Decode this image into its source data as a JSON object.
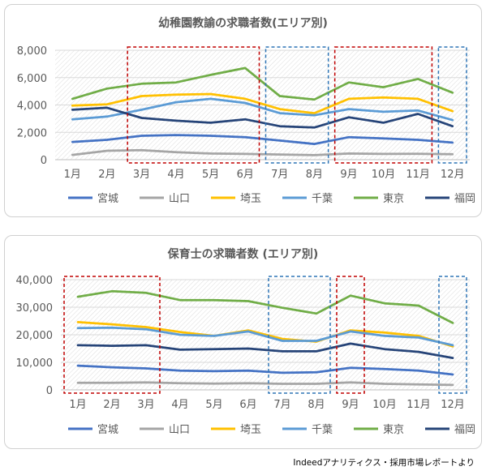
{
  "source_note": "Indeedアナリティクス・採用市場レポートより",
  "chart_data": [
    {
      "type": "line",
      "title": "幼稚園教諭の求職者数(エリア別)",
      "categories": [
        "1月",
        "2月",
        "3月",
        "4月",
        "5月",
        "6月",
        "7月",
        "8月",
        "9月",
        "10月",
        "11月",
        "12月"
      ],
      "ylim": [
        0,
        8000
      ],
      "yticks": [
        "0",
        "2,000",
        "4,000",
        "6,000",
        "8,000"
      ],
      "ytick_values": [
        0,
        2000,
        4000,
        6000,
        8000
      ],
      "legend_position": "bottom",
      "grid": true,
      "series": [
        {
          "name": "宮城",
          "color": "#4472c4",
          "values": [
            1300,
            1450,
            1750,
            1800,
            1750,
            1650,
            1400,
            1150,
            1650,
            1550,
            1450,
            1250
          ]
        },
        {
          "name": "山口",
          "color": "#a5a5a5",
          "values": [
            350,
            650,
            700,
            550,
            450,
            420,
            380,
            330,
            450,
            420,
            430,
            400
          ]
        },
        {
          "name": "埼玉",
          "color": "#ffc000",
          "values": [
            3950,
            4050,
            4650,
            4750,
            4800,
            4450,
            3700,
            3400,
            4450,
            4550,
            4450,
            3550
          ]
        },
        {
          "name": "千葉",
          "color": "#5b9bd5",
          "values": [
            2950,
            3150,
            3650,
            4200,
            4450,
            4150,
            3400,
            3250,
            3700,
            3500,
            3600,
            2900
          ]
        },
        {
          "name": "東京",
          "color": "#70ad47",
          "values": [
            4450,
            5200,
            5550,
            5650,
            6200,
            6700,
            4650,
            4400,
            5650,
            5300,
            5900,
            4900
          ]
        },
        {
          "name": "福岡",
          "color": "#264478",
          "values": [
            3650,
            3800,
            3050,
            2850,
            2700,
            2950,
            2450,
            2350,
            3100,
            2700,
            3350,
            2450
          ]
        }
      ],
      "highlights": [
        {
          "color": "#c00000",
          "from": "3月",
          "to": "6月"
        },
        {
          "color": "#2e75b6",
          "from": "7月",
          "to": "8月"
        },
        {
          "color": "#c00000",
          "from": "9月",
          "to": "11月"
        },
        {
          "color": "#2e75b6",
          "from": "12月",
          "to": "12月"
        }
      ]
    },
    {
      "type": "line",
      "title": "保育士の求職者数 (エリア別)",
      "categories": [
        "1月",
        "2月",
        "3月",
        "4月",
        "5月",
        "6月",
        "7月",
        "8月",
        "9月",
        "10月",
        "11月",
        "12月"
      ],
      "ylim": [
        0,
        40000
      ],
      "yticks": [
        "0",
        "10,000",
        "20,000",
        "30,000",
        "40,000"
      ],
      "ytick_values": [
        0,
        10000,
        20000,
        30000,
        40000
      ],
      "legend_position": "bottom",
      "grid": true,
      "series": [
        {
          "name": "宮城",
          "color": "#4472c4",
          "values": [
            8800,
            8200,
            7800,
            7000,
            6800,
            7000,
            6200,
            6400,
            8000,
            7600,
            7000,
            5600
          ]
        },
        {
          "name": "山口",
          "color": "#a5a5a5",
          "values": [
            2600,
            2600,
            2700,
            2400,
            2300,
            2400,
            2200,
            2200,
            2700,
            2200,
            2000,
            1800
          ]
        },
        {
          "name": "埼玉",
          "color": "#ffc000",
          "values": [
            24600,
            23800,
            22800,
            21000,
            19600,
            21600,
            18500,
            17500,
            21600,
            20800,
            19600,
            15800
          ]
        },
        {
          "name": "千葉",
          "color": "#5b9bd5",
          "values": [
            22400,
            22600,
            22000,
            20000,
            19600,
            21200,
            17800,
            17800,
            21200,
            19600,
            19000,
            16200
          ]
        },
        {
          "name": "東京",
          "color": "#70ad47",
          "values": [
            33800,
            35800,
            35200,
            32600,
            32600,
            32200,
            29800,
            27700,
            34200,
            31400,
            30600,
            24300
          ]
        },
        {
          "name": "福岡",
          "color": "#264478",
          "values": [
            16200,
            16000,
            16200,
            14600,
            14800,
            15000,
            14000,
            14000,
            16800,
            14800,
            13800,
            11600
          ]
        }
      ],
      "highlights": [
        {
          "color": "#c00000",
          "from": "1月",
          "to": "3月"
        },
        {
          "color": "#2e75b6",
          "from": "7月",
          "to": "8月"
        },
        {
          "color": "#c00000",
          "from": "9月",
          "to": "9月"
        },
        {
          "color": "#2e75b6",
          "from": "12月",
          "to": "12月"
        }
      ]
    }
  ]
}
